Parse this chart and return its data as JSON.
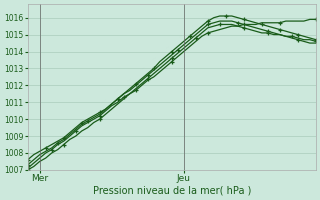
{
  "background_color": "#cce8dc",
  "grid_color": "#aaccbb",
  "line_color": "#1a5c1a",
  "xlabel": "Pression niveau de la mer( hPa )",
  "xlim": [
    0,
    48
  ],
  "ylim": [
    1007,
    1016.8
  ],
  "yticks": [
    1007,
    1008,
    1009,
    1010,
    1011,
    1012,
    1013,
    1014,
    1015,
    1016
  ],
  "mer_x": 2,
  "jeu_x": 26,
  "n_points": 49,
  "series": [
    {
      "x": [
        0,
        1,
        2,
        3,
        4,
        5,
        6,
        7,
        8,
        9,
        10,
        11,
        12,
        13,
        14,
        15,
        16,
        17,
        18,
        19,
        20,
        21,
        22,
        23,
        24,
        25,
        26,
        27,
        28,
        29,
        30,
        31,
        32,
        33,
        34,
        35,
        36,
        37,
        38,
        39,
        40,
        41,
        42,
        43,
        44,
        45,
        46,
        47,
        48
      ],
      "y": [
        1007.1,
        1007.4,
        1007.7,
        1008.0,
        1008.2,
        1008.5,
        1008.7,
        1009.0,
        1009.3,
        1009.6,
        1009.8,
        1010.0,
        1010.2,
        1010.5,
        1010.8,
        1011.0,
        1011.3,
        1011.5,
        1011.8,
        1012.1,
        1012.4,
        1012.7,
        1013.0,
        1013.3,
        1013.6,
        1013.9,
        1014.2,
        1014.5,
        1014.8,
        1015.1,
        1015.4,
        1015.5,
        1015.6,
        1015.6,
        1015.6,
        1015.5,
        1015.4,
        1015.3,
        1015.2,
        1015.1,
        1015.1,
        1015.0,
        1015.0,
        1014.9,
        1014.9,
        1014.8,
        1014.7,
        1014.7,
        1014.6
      ],
      "marker_every": 4
    },
    {
      "x": [
        0,
        1,
        2,
        3,
        4,
        5,
        6,
        7,
        8,
        9,
        10,
        11,
        12,
        13,
        14,
        15,
        16,
        17,
        18,
        19,
        20,
        21,
        22,
        23,
        24,
        25,
        26,
        27,
        28,
        29,
        30,
        31,
        32,
        33,
        34,
        35,
        36,
        37,
        38,
        39,
        40,
        41,
        42,
        43,
        44,
        45,
        46,
        47,
        48
      ],
      "y": [
        1007.3,
        1007.6,
        1007.9,
        1008.1,
        1008.3,
        1008.6,
        1008.8,
        1009.1,
        1009.4,
        1009.7,
        1009.9,
        1010.1,
        1010.3,
        1010.6,
        1010.9,
        1011.2,
        1011.5,
        1011.7,
        1012.0,
        1012.3,
        1012.6,
        1012.9,
        1013.2,
        1013.5,
        1013.8,
        1014.1,
        1014.4,
        1014.7,
        1015.0,
        1015.3,
        1015.6,
        1015.7,
        1015.8,
        1015.8,
        1015.8,
        1015.7,
        1015.6,
        1015.5,
        1015.4,
        1015.3,
        1015.2,
        1015.1,
        1015.0,
        1014.9,
        1014.8,
        1014.7,
        1014.6,
        1014.5,
        1014.5
      ],
      "marker_every": 5
    },
    {
      "x": [
        0,
        1,
        2,
        3,
        4,
        5,
        6,
        7,
        8,
        9,
        10,
        11,
        12,
        13,
        14,
        15,
        16,
        17,
        18,
        19,
        20,
        21,
        22,
        23,
        24,
        25,
        26,
        27,
        28,
        29,
        30,
        31,
        32,
        33,
        34,
        35,
        36,
        37,
        38,
        39,
        40,
        41,
        42,
        43,
        44,
        45,
        46,
        47,
        48
      ],
      "y": [
        1007.6,
        1007.9,
        1008.1,
        1008.3,
        1008.5,
        1008.7,
        1008.9,
        1009.2,
        1009.5,
        1009.8,
        1010.0,
        1010.2,
        1010.4,
        1010.6,
        1010.9,
        1011.2,
        1011.5,
        1011.8,
        1012.1,
        1012.4,
        1012.7,
        1013.0,
        1013.4,
        1013.7,
        1014.0,
        1014.3,
        1014.6,
        1014.9,
        1015.2,
        1015.5,
        1015.8,
        1016.0,
        1016.1,
        1016.1,
        1016.1,
        1016.0,
        1015.9,
        1015.8,
        1015.7,
        1015.6,
        1015.5,
        1015.4,
        1015.3,
        1015.2,
        1015.1,
        1015.0,
        1014.9,
        1014.8,
        1014.7
      ],
      "marker_every": 3
    },
    {
      "x": [
        0,
        1,
        2,
        3,
        4,
        5,
        6,
        7,
        8,
        9,
        10,
        11,
        12,
        13,
        14,
        15,
        16,
        17,
        18,
        19,
        20,
        21,
        22,
        23,
        24,
        25,
        26,
        27,
        28,
        29,
        30,
        31,
        32,
        33,
        34,
        35,
        36,
        37,
        38,
        39,
        40,
        41,
        42,
        43,
        44,
        45,
        46,
        47,
        48
      ],
      "y": [
        1007.0,
        1007.2,
        1007.5,
        1007.7,
        1008.0,
        1008.2,
        1008.5,
        1008.8,
        1009.0,
        1009.3,
        1009.5,
        1009.8,
        1010.0,
        1010.3,
        1010.6,
        1010.9,
        1011.2,
        1011.5,
        1011.7,
        1012.0,
        1012.3,
        1012.5,
        1012.8,
        1013.1,
        1013.4,
        1013.7,
        1014.0,
        1014.3,
        1014.6,
        1014.9,
        1015.1,
        1015.2,
        1015.3,
        1015.4,
        1015.5,
        1015.5,
        1015.6,
        1015.6,
        1015.6,
        1015.7,
        1015.7,
        1015.7,
        1015.7,
        1015.8,
        1015.8,
        1015.8,
        1015.8,
        1015.9,
        1015.9
      ],
      "marker_every": 6
    }
  ]
}
